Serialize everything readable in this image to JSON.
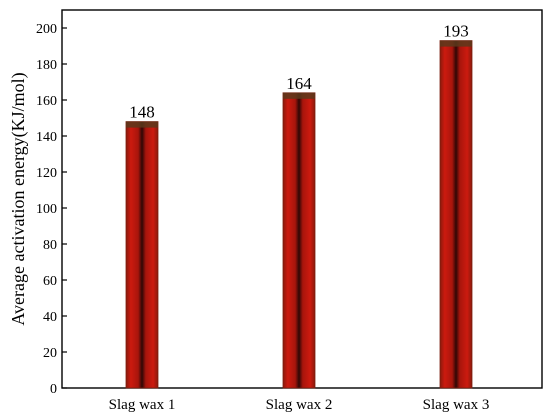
{
  "chart_data": {
    "type": "bar",
    "categories": [
      "Slag wax 1",
      "Slag wax 2",
      "Slag wax 3"
    ],
    "values": [
      148,
      164,
      193
    ],
    "data_labels": [
      "148",
      "164",
      "193"
    ],
    "ylabel": "Average activation energy(KJ/mol)",
    "xlabel": "",
    "ylim": [
      0,
      210
    ],
    "yticks": [
      0,
      20,
      40,
      60,
      80,
      100,
      120,
      140,
      160,
      180,
      200
    ],
    "ytick_labels": [
      "0",
      "20",
      "40",
      "60",
      "80",
      "100",
      "120",
      "140",
      "160",
      "180",
      "200"
    ],
    "grid": false,
    "legend": "none",
    "colors": {
      "bar_fill": "#cc1a0f",
      "bar_center": "#2e0705",
      "bar_edge": "#7a1d0e",
      "bar_cap": "#5b3a1c"
    }
  }
}
